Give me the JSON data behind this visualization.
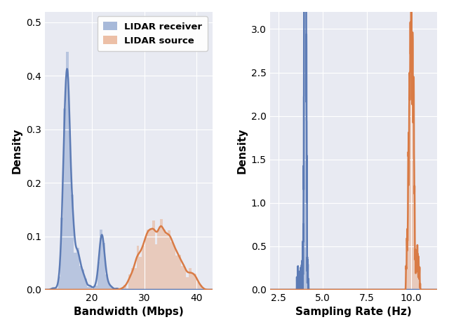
{
  "fig_width": 6.4,
  "fig_height": 4.7,
  "dpi": 100,
  "bg_color": "#e8eaf2",
  "blue_color": "#5c7bb5",
  "orange_color": "#d97b45",
  "blue_hist_color": "#92a8d1",
  "orange_hist_color": "#e8b090",
  "blue_alpha": 0.55,
  "orange_alpha": 0.55,
  "left_xlabel": "Bandwidth (Mbps)",
  "right_xlabel": "Sampling Rate (Hz)",
  "ylabel": "Density",
  "legend_labels": [
    "LIDAR receiver",
    "LIDAR source"
  ],
  "left_xlim": [
    11,
    43
  ],
  "left_ylim": [
    0.0,
    0.52
  ],
  "left_yticks": [
    0.0,
    0.1,
    0.2,
    0.3,
    0.4,
    0.5
  ],
  "left_xticks": [
    20,
    30,
    40
  ],
  "right_xlim": [
    2.0,
    11.5
  ],
  "right_ylim": [
    0.0,
    3.2
  ],
  "right_yticks": [
    0.0,
    0.5,
    1.0,
    1.5,
    2.0,
    2.5,
    3.0
  ],
  "right_xticks": [
    2.5,
    5.0,
    7.5,
    10.0
  ],
  "seed": 42
}
